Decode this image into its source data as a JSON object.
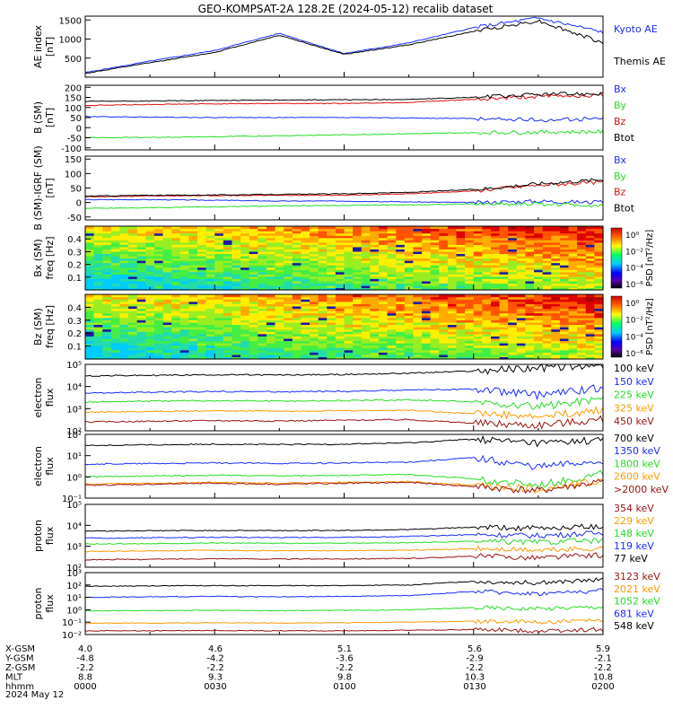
{
  "title": "GEO-KOMPSAT-2A 128.2E (2024-05-12) recalib dataset",
  "colors": {
    "black": "#000000",
    "blue": "#1a2cff",
    "red": "#dd1111",
    "green": "#22dd22",
    "orange": "#ff9900",
    "darkred": "#991111"
  },
  "chart_data": [
    {
      "type": "line",
      "id": "ae",
      "ylabel": [
        "AE index",
        "[nT]"
      ],
      "ylim": [
        0,
        1600
      ],
      "yticks": [
        500,
        1000,
        1500
      ],
      "ytick_labels": [
        "500",
        "1000",
        "1500"
      ],
      "x": [
        0,
        15,
        30,
        45,
        60,
        75,
        90,
        105,
        120
      ],
      "series": [
        {
          "name": "Kyoto AE",
          "color": "#1a2cff",
          "values": [
            120,
            420,
            700,
            1150,
            620,
            900,
            1300,
            1550,
            1180
          ]
        },
        {
          "name": "Themis AE",
          "color": "#000000",
          "values": [
            100,
            380,
            650,
            1100,
            600,
            850,
            1200,
            1480,
            900
          ]
        }
      ]
    },
    {
      "type": "line",
      "id": "b_sm",
      "ylabel": [
        "B (SM)",
        "[nT]"
      ],
      "ylim": [
        -110,
        210
      ],
      "yticks": [
        -100,
        -50,
        0,
        50,
        100,
        150,
        200
      ],
      "ytick_labels": [
        "-100",
        "-50",
        "0",
        "50",
        "100",
        "150",
        "200"
      ],
      "x": [
        0,
        15,
        30,
        45,
        60,
        75,
        90,
        105,
        120
      ],
      "series": [
        {
          "name": "Bx",
          "color": "#1a2cff",
          "values": [
            55,
            52,
            50,
            50,
            50,
            48,
            45,
            38,
            45
          ]
        },
        {
          "name": "By",
          "color": "#22dd22",
          "values": [
            -50,
            -48,
            -45,
            -40,
            -35,
            -30,
            -25,
            -22,
            -20
          ]
        },
        {
          "name": "Bz",
          "color": "#dd1111",
          "values": [
            110,
            115,
            118,
            120,
            120,
            125,
            140,
            155,
            160
          ]
        },
        {
          "name": "Btot",
          "color": "#000000",
          "values": [
            130,
            132,
            135,
            137,
            138,
            140,
            150,
            165,
            170
          ]
        }
      ]
    },
    {
      "type": "line",
      "id": "b_sm_igrf",
      "ylabel": [
        "B (SM)-IGRF (SM)",
        "[nT]"
      ],
      "ylim": [
        -60,
        160
      ],
      "yticks": [
        -50,
        0,
        50,
        100,
        150
      ],
      "ytick_labels": [
        "-50",
        "0",
        "50",
        "100",
        "150"
      ],
      "x": [
        0,
        15,
        30,
        45,
        60,
        75,
        90,
        105,
        120
      ],
      "series": [
        {
          "name": "Bx",
          "color": "#1a2cff",
          "values": [
            10,
            10,
            8,
            5,
            5,
            2,
            0,
            5,
            0
          ]
        },
        {
          "name": "By",
          "color": "#22dd22",
          "values": [
            -20,
            -18,
            -15,
            -12,
            -10,
            -8,
            -5,
            -5,
            -10
          ]
        },
        {
          "name": "Bz",
          "color": "#dd1111",
          "values": [
            20,
            22,
            24,
            25,
            25,
            30,
            40,
            60,
            70
          ]
        },
        {
          "name": "Btot",
          "color": "#000000",
          "values": [
            22,
            25,
            26,
            28,
            30,
            35,
            45,
            65,
            80
          ]
        }
      ]
    },
    {
      "type": "heatmap",
      "id": "bx_spec",
      "ylabel": [
        "Bx (SM)",
        "freq [Hz]"
      ],
      "ylim": [
        0,
        0.5
      ],
      "yticks": [
        0.1,
        0.2,
        0.3,
        0.4
      ],
      "ytick_labels": [
        "0.1",
        "0.2",
        "0.3",
        "0.4"
      ],
      "colorbar": {
        "label": "PSD [nT²/Hz]",
        "tick_labels": [
          "10⁰",
          "10⁻²",
          "10⁻⁴",
          "10⁻⁶"
        ]
      }
    },
    {
      "type": "heatmap",
      "id": "bz_spec",
      "ylabel": [
        "Bz (SM)",
        "freq [Hz]"
      ],
      "ylim": [
        0,
        0.5
      ],
      "yticks": [
        0.1,
        0.2,
        0.3,
        0.4
      ],
      "ytick_labels": [
        "0.1",
        "0.2",
        "0.3",
        "0.4"
      ],
      "colorbar": {
        "label": "PSD [nT²/Hz]",
        "tick_labels": [
          "10⁰",
          "10⁻²",
          "10⁻⁴",
          "10⁻⁶"
        ]
      }
    },
    {
      "type": "line",
      "id": "e_flux_low",
      "log": true,
      "ylabel": [
        "electron",
        "flux"
      ],
      "ylim": [
        100,
        100000
      ],
      "ytick_labels": [
        "10²",
        "10³",
        "10⁴",
        "10⁵"
      ],
      "x": [
        0,
        15,
        30,
        45,
        60,
        75,
        90,
        105,
        120
      ],
      "series": [
        {
          "name": "100 keV",
          "color": "#000000",
          "values": [
            30000,
            32000,
            34000,
            33000,
            35000,
            40000,
            50000,
            70000,
            90000
          ]
        },
        {
          "name": "150 keV",
          "color": "#1a2cff",
          "values": [
            5000,
            5500,
            6000,
            5800,
            6000,
            7000,
            7500,
            4000,
            9000
          ]
        },
        {
          "name": "225 keV",
          "color": "#22dd22",
          "values": [
            2000,
            2200,
            2300,
            2200,
            2300,
            2500,
            2000,
            1200,
            3000
          ]
        },
        {
          "name": "325 keV",
          "color": "#ff9900",
          "values": [
            700,
            750,
            800,
            780,
            800,
            850,
            600,
            400,
            900
          ]
        },
        {
          "name": "450 keV",
          "color": "#991111",
          "values": [
            250,
            270,
            290,
            280,
            300,
            320,
            220,
            180,
            330
          ]
        }
      ]
    },
    {
      "type": "line",
      "id": "e_flux_high",
      "log": true,
      "ylabel": [
        "electron",
        "flux"
      ],
      "ylim": [
        0.1,
        100
      ],
      "ytick_labels": [
        "10⁻¹",
        "10⁰",
        "10¹",
        "10²"
      ],
      "x": [
        0,
        15,
        30,
        45,
        60,
        75,
        90,
        105,
        120
      ],
      "series": [
        {
          "name": "700 keV",
          "color": "#000000",
          "values": [
            30,
            32,
            35,
            33,
            35,
            40,
            60,
            40,
            55
          ]
        },
        {
          "name": "1350 keV",
          "color": "#1a2cff",
          "values": [
            4,
            4.2,
            4.5,
            4.3,
            4.5,
            5,
            8,
            3,
            6
          ]
        },
        {
          "name": "1800 keV",
          "color": "#22dd22",
          "values": [
            1,
            1.1,
            1.2,
            1.1,
            1.2,
            1.3,
            0.8,
            0.4,
            1.4
          ]
        },
        {
          "name": "2600 keV",
          "color": "#ff9900",
          "values": [
            0.45,
            0.5,
            0.55,
            0.5,
            0.55,
            0.6,
            0.4,
            0.25,
            0.65
          ]
        },
        {
          "name": ">2000 keV",
          "color": "#991111",
          "values": [
            0.4,
            0.45,
            0.5,
            0.45,
            0.5,
            0.55,
            0.35,
            0.22,
            0.6
          ]
        }
      ]
    },
    {
      "type": "line",
      "id": "p_flux_low",
      "log": true,
      "ylabel": [
        "proton",
        "flux"
      ],
      "ylim": [
        100,
        1000000
      ],
      "ytick_labels": [
        "10²",
        "10³",
        "10⁴",
        "10⁵"
      ],
      "x": [
        0,
        15,
        30,
        45,
        60,
        75,
        90,
        105,
        120
      ],
      "series": [
        {
          "name": "354 keV",
          "color": "#991111",
          "values": [
            300,
            320,
            350,
            330,
            340,
            360,
            500,
            400,
            600
          ]
        },
        {
          "name": "229 keV",
          "color": "#ff9900",
          "values": [
            1000,
            1100,
            1200,
            1100,
            1150,
            1200,
            1500,
            1200,
            1600
          ]
        },
        {
          "name": "148 keV",
          "color": "#22dd22",
          "values": [
            3000,
            3200,
            3500,
            3300,
            3400,
            3600,
            4500,
            4000,
            5000
          ]
        },
        {
          "name": "119 keV",
          "color": "#1a2cff",
          "values": [
            7000,
            7500,
            8000,
            7800,
            8000,
            9000,
            12000,
            10000,
            15000
          ]
        },
        {
          "name": "77 keV",
          "color": "#000000",
          "values": [
            20000,
            21000,
            22000,
            21500,
            22000,
            25000,
            35000,
            30000,
            40000
          ]
        }
      ]
    },
    {
      "type": "line",
      "id": "p_flux_high",
      "log": true,
      "ylabel": [
        "proton",
        "flux"
      ],
      "ylim": [
        0.01,
        1000
      ],
      "ytick_labels": [
        "10⁻²",
        "10⁻¹",
        "10⁰",
        "10¹",
        "10²",
        "10³"
      ],
      "x": [
        0,
        15,
        30,
        45,
        60,
        75,
        90,
        105,
        120
      ],
      "series": [
        {
          "name": "3123 keV",
          "color": "#991111",
          "values": [
            0.02,
            0.02,
            0.021,
            0.02,
            0.02,
            0.022,
            0.025,
            0.02,
            0.025
          ]
        },
        {
          "name": "2021 keV",
          "color": "#ff9900",
          "values": [
            0.08,
            0.085,
            0.09,
            0.085,
            0.09,
            0.1,
            0.12,
            0.1,
            0.13
          ]
        },
        {
          "name": "1052 keV",
          "color": "#22dd22",
          "values": [
            0.8,
            0.85,
            0.9,
            0.85,
            0.9,
            1,
            1.5,
            1.2,
            1.8
          ]
        },
        {
          "name": "681 keV",
          "color": "#1a2cff",
          "values": [
            10,
            11,
            12,
            11,
            12,
            14,
            30,
            20,
            35
          ]
        },
        {
          "name": "548 keV",
          "color": "#000000",
          "values": [
            80,
            85,
            90,
            88,
            90,
            100,
            200,
            150,
            250
          ]
        }
      ]
    }
  ],
  "x_axis": {
    "rows": [
      {
        "label": "X-GSM",
        "values": [
          "4.0",
          "4.6",
          "5.1",
          "5.6",
          "5.9"
        ]
      },
      {
        "label": "Y-GSM",
        "values": [
          "-4.8",
          "-4.2",
          "-3.6",
          "-2.9",
          "-2.1"
        ]
      },
      {
        "label": "Z-GSM",
        "values": [
          "-2.2",
          "-2.2",
          "-2.2",
          "-2.2",
          "-2.2"
        ]
      },
      {
        "label": "MLT",
        "values": [
          "8.8",
          "9.3",
          "9.8",
          "10.3",
          "10.8"
        ]
      },
      {
        "label": "hhmm",
        "values": [
          "0000",
          "0030",
          "0100",
          "0130",
          "0200"
        ]
      }
    ],
    "date": "2024 May 12"
  }
}
